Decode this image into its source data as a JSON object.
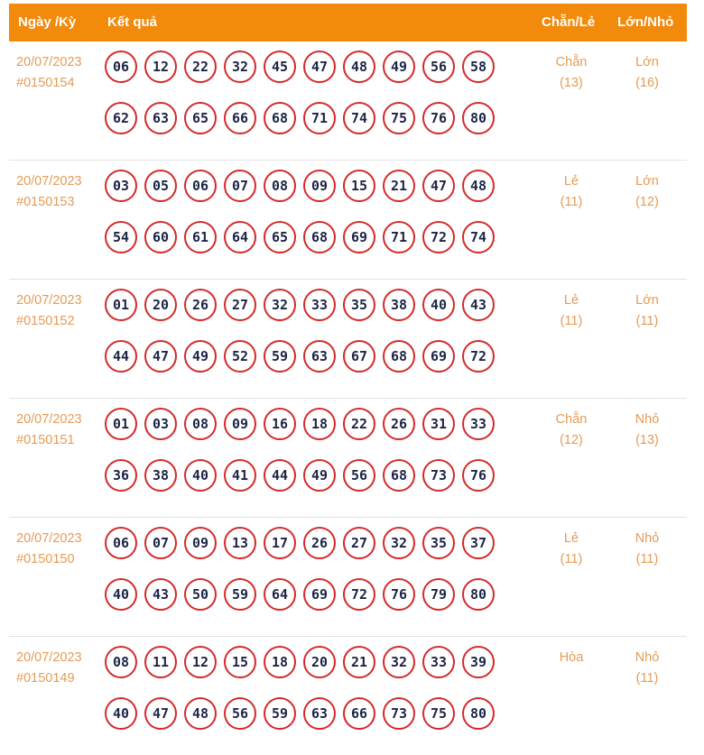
{
  "header": {
    "date_col": "Ngày /Kỳ",
    "result_col": "Kết quả",
    "even_odd_col": "Chẵn/Lẻ",
    "big_small_col": "Lớn/Nhỏ"
  },
  "rows": [
    {
      "date": "20/07/2023",
      "period": "#0150154",
      "numbers": [
        "06",
        "12",
        "22",
        "32",
        "45",
        "47",
        "48",
        "49",
        "56",
        "58",
        "62",
        "63",
        "65",
        "66",
        "68",
        "71",
        "74",
        "75",
        "76",
        "80"
      ],
      "even_odd": "Chẵn",
      "even_odd_count": "(13)",
      "big_small": "Lớn",
      "big_small_count": "(16)"
    },
    {
      "date": "20/07/2023",
      "period": "#0150153",
      "numbers": [
        "03",
        "05",
        "06",
        "07",
        "08",
        "09",
        "15",
        "21",
        "47",
        "48",
        "54",
        "60",
        "61",
        "64",
        "65",
        "68",
        "69",
        "71",
        "72",
        "74"
      ],
      "even_odd": "Lẻ",
      "even_odd_count": "(11)",
      "big_small": "Lớn",
      "big_small_count": "(12)"
    },
    {
      "date": "20/07/2023",
      "period": "#0150152",
      "numbers": [
        "01",
        "20",
        "26",
        "27",
        "32",
        "33",
        "35",
        "38",
        "40",
        "43",
        "44",
        "47",
        "49",
        "52",
        "59",
        "63",
        "67",
        "68",
        "69",
        "72"
      ],
      "even_odd": "Lẻ",
      "even_odd_count": "(11)",
      "big_small": "Lớn",
      "big_small_count": "(11)"
    },
    {
      "date": "20/07/2023",
      "period": "#0150151",
      "numbers": [
        "01",
        "03",
        "08",
        "09",
        "16",
        "18",
        "22",
        "26",
        "31",
        "33",
        "36",
        "38",
        "40",
        "41",
        "44",
        "49",
        "56",
        "68",
        "73",
        "76"
      ],
      "even_odd": "Chẵn",
      "even_odd_count": "(12)",
      "big_small": "Nhỏ",
      "big_small_count": "(13)"
    },
    {
      "date": "20/07/2023",
      "period": "#0150150",
      "numbers": [
        "06",
        "07",
        "09",
        "13",
        "17",
        "26",
        "27",
        "32",
        "35",
        "37",
        "40",
        "43",
        "50",
        "59",
        "64",
        "69",
        "72",
        "76",
        "79",
        "80"
      ],
      "even_odd": "Lẻ",
      "even_odd_count": "(11)",
      "big_small": "Nhỏ",
      "big_small_count": "(11)"
    },
    {
      "date": "20/07/2023",
      "period": "#0150149",
      "numbers": [
        "08",
        "11",
        "12",
        "15",
        "18",
        "20",
        "21",
        "32",
        "33",
        "39",
        "40",
        "47",
        "48",
        "56",
        "59",
        "63",
        "66",
        "73",
        "75",
        "80"
      ],
      "even_odd": "Hòa",
      "even_odd_count": "",
      "big_small": "Nhỏ",
      "big_small_count": "(11)"
    }
  ],
  "colors": {
    "header_bg": "#f28a0b",
    "text_accent": "#e59b56",
    "ball_border": "#d42a2a",
    "ball_text": "#1c2545"
  }
}
